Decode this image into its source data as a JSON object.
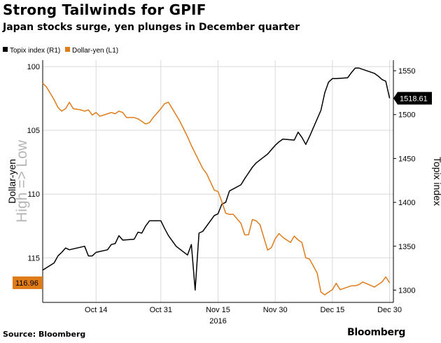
{
  "title": "Strong Tailwinds for GPIF",
  "subtitle": "Japan stocks surge, yen plunges in December quarter",
  "source": "Source: Bloomberg",
  "brand": "Bloomberg",
  "chart_data": {
    "type": "line",
    "legend": {
      "placement": "top-left",
      "entries": [
        "Topix index (R1)",
        "Dollar-yen (L1)"
      ]
    },
    "left_axis": {
      "label": "Dollar-yen",
      "side_label": "High => Low",
      "inverted": true,
      "ylim": [
        99.5,
        118.5
      ],
      "ticks": [
        100,
        105,
        110,
        115
      ],
      "tick_labels": [
        "100",
        "105",
        "110",
        "115"
      ],
      "last_value_label": "116.96"
    },
    "right_axis": {
      "label": "Topix index",
      "ylim": [
        1286,
        1562
      ],
      "ticks": [
        1300,
        1350,
        1400,
        1450,
        1500,
        1550
      ],
      "tick_labels": [
        "1300",
        "1350",
        "1400",
        "1450",
        "1500",
        "1550"
      ],
      "last_value_label": "1518.61"
    },
    "x_axis": {
      "start": "2016-09-30",
      "end": "2016-12-31",
      "ticks": [
        "2016-10-14",
        "2016-10-31",
        "2016-11-15",
        "2016-11-30",
        "2016-12-15",
        "2016-12-30"
      ],
      "tick_labels": [
        "Oct 14",
        "Oct 31",
        "Nov 15",
        "Nov 30",
        "Dec 15",
        "Dec 30"
      ],
      "year_label": "2016"
    },
    "colors": {
      "topix": "#000000",
      "usdjpy": "#e07b1a",
      "grid": "#d9d9d9"
    },
    "series": [
      {
        "name": "Topix index (R1)",
        "axis": "right",
        "color": "#000000",
        "points": [
          [
            "2016-09-30",
            1322.8
          ],
          [
            "2016-10-03",
            1331
          ],
          [
            "2016-10-04",
            1339
          ],
          [
            "2016-10-05",
            1343
          ],
          [
            "2016-10-06",
            1348
          ],
          [
            "2016-10-07",
            1346
          ],
          [
            "2016-10-11",
            1350
          ],
          [
            "2016-10-12",
            1339
          ],
          [
            "2016-10-13",
            1339
          ],
          [
            "2016-10-14",
            1343
          ],
          [
            "2016-10-17",
            1346
          ],
          [
            "2016-10-18",
            1352
          ],
          [
            "2016-10-19",
            1353
          ],
          [
            "2016-10-20",
            1362
          ],
          [
            "2016-10-21",
            1357
          ],
          [
            "2016-10-24",
            1358
          ],
          [
            "2016-10-25",
            1366
          ],
          [
            "2016-10-26",
            1365
          ],
          [
            "2016-10-27",
            1373
          ],
          [
            "2016-10-28",
            1379
          ],
          [
            "2016-10-31",
            1379
          ],
          [
            "2016-11-01",
            1370
          ],
          [
            "2016-11-02",
            1362
          ],
          [
            "2016-11-04",
            1350
          ],
          [
            "2016-11-07",
            1340
          ],
          [
            "2016-11-08",
            1352
          ],
          [
            "2016-11-09",
            1300
          ],
          [
            "2016-11-10",
            1365
          ],
          [
            "2016-11-11",
            1367
          ],
          [
            "2016-11-14",
            1385
          ],
          [
            "2016-11-15",
            1387
          ],
          [
            "2016-11-16",
            1398
          ],
          [
            "2016-11-17",
            1400
          ],
          [
            "2016-11-18",
            1413
          ],
          [
            "2016-11-21",
            1420
          ],
          [
            "2016-11-22",
            1427
          ],
          [
            "2016-11-24",
            1440
          ],
          [
            "2016-11-25",
            1445
          ],
          [
            "2016-11-28",
            1455
          ],
          [
            "2016-11-29",
            1460
          ],
          [
            "2016-11-30",
            1465
          ],
          [
            "2016-12-01",
            1469
          ],
          [
            "2016-12-02",
            1472
          ],
          [
            "2016-12-05",
            1471
          ],
          [
            "2016-12-06",
            1480
          ],
          [
            "2016-12-07",
            1474
          ],
          [
            "2016-12-08",
            1466
          ],
          [
            "2016-12-09",
            1475
          ],
          [
            "2016-12-12",
            1505
          ],
          [
            "2016-12-13",
            1525
          ],
          [
            "2016-12-14",
            1537
          ],
          [
            "2016-12-15",
            1541
          ],
          [
            "2016-12-16",
            1541
          ],
          [
            "2016-12-19",
            1542
          ],
          [
            "2016-12-20",
            1548
          ],
          [
            "2016-12-21",
            1553
          ],
          [
            "2016-12-22",
            1553
          ],
          [
            "2016-12-26",
            1547
          ],
          [
            "2016-12-27",
            1544
          ],
          [
            "2016-12-28",
            1540
          ],
          [
            "2016-12-29",
            1538
          ],
          [
            "2016-12-30",
            1518.61
          ]
        ]
      },
      {
        "name": "Dollar-yen (L1)",
        "axis": "left",
        "color": "#e07b1a",
        "points": [
          [
            "2016-09-30",
            101.3
          ],
          [
            "2016-10-01",
            101.6
          ],
          [
            "2016-10-03",
            102.6
          ],
          [
            "2016-10-04",
            103.2
          ],
          [
            "2016-10-05",
            103.5
          ],
          [
            "2016-10-06",
            103.3
          ],
          [
            "2016-10-07",
            102.8
          ],
          [
            "2016-10-08",
            103.3
          ],
          [
            "2016-10-10",
            103.4
          ],
          [
            "2016-10-11",
            103.5
          ],
          [
            "2016-10-12",
            103.4
          ],
          [
            "2016-10-13",
            103.8
          ],
          [
            "2016-10-14",
            103.6
          ],
          [
            "2016-10-15",
            103.9
          ],
          [
            "2016-10-17",
            103.7
          ],
          [
            "2016-10-18",
            103.6
          ],
          [
            "2016-10-19",
            103.7
          ],
          [
            "2016-10-20",
            103.5
          ],
          [
            "2016-10-21",
            103.6
          ],
          [
            "2016-10-22",
            104.0
          ],
          [
            "2016-10-24",
            104.0
          ],
          [
            "2016-10-25",
            104.1
          ],
          [
            "2016-10-26",
            104.3
          ],
          [
            "2016-10-27",
            104.5
          ],
          [
            "2016-10-28",
            104.4
          ],
          [
            "2016-10-29",
            104.0
          ],
          [
            "2016-10-31",
            103.3
          ],
          [
            "2016-11-01",
            102.9
          ],
          [
            "2016-11-02",
            102.8
          ],
          [
            "2016-11-03",
            103.3
          ],
          [
            "2016-11-04",
            103.8
          ],
          [
            "2016-11-05",
            104.3
          ],
          [
            "2016-11-07",
            105.5
          ],
          [
            "2016-11-08",
            106.2
          ],
          [
            "2016-11-09",
            106.8
          ],
          [
            "2016-11-10",
            107.4
          ],
          [
            "2016-11-11",
            108.0
          ],
          [
            "2016-11-12",
            108.4
          ],
          [
            "2016-11-14",
            109.7
          ],
          [
            "2016-11-15",
            109.8
          ],
          [
            "2016-11-16",
            110.6
          ],
          [
            "2016-11-17",
            111.5
          ],
          [
            "2016-11-18",
            111.6
          ],
          [
            "2016-11-19",
            111.6
          ],
          [
            "2016-11-21",
            112.3
          ],
          [
            "2016-11-22",
            113.2
          ],
          [
            "2016-11-23",
            113.2
          ],
          [
            "2016-11-24",
            112.0
          ],
          [
            "2016-11-25",
            112.1
          ],
          [
            "2016-11-26",
            112.4
          ],
          [
            "2016-11-28",
            114.4
          ],
          [
            "2016-11-29",
            114.2
          ],
          [
            "2016-11-30",
            113.5
          ],
          [
            "2016-12-01",
            113.1
          ],
          [
            "2016-12-02",
            113.4
          ],
          [
            "2016-12-04",
            113.8
          ],
          [
            "2016-12-05",
            113.3
          ],
          [
            "2016-12-06",
            113.6
          ],
          [
            "2016-12-07",
            113.8
          ],
          [
            "2016-12-08",
            115.0
          ],
          [
            "2016-12-09",
            115.1
          ],
          [
            "2016-12-11",
            116.2
          ],
          [
            "2016-12-12",
            117.7
          ],
          [
            "2016-12-13",
            117.9
          ],
          [
            "2016-12-14",
            117.7
          ],
          [
            "2016-12-15",
            117.5
          ],
          [
            "2016-12-16",
            117.0
          ],
          [
            "2016-12-17",
            117.5
          ],
          [
            "2016-12-19",
            117.3
          ],
          [
            "2016-12-20",
            117.2
          ],
          [
            "2016-12-21",
            117.2
          ],
          [
            "2016-12-22",
            117.1
          ],
          [
            "2016-12-23",
            116.9
          ],
          [
            "2016-12-26",
            117.3
          ],
          [
            "2016-12-27",
            117.1
          ],
          [
            "2016-12-28",
            116.9
          ],
          [
            "2016-12-29",
            116.5
          ],
          [
            "2016-12-30",
            116.96
          ]
        ]
      }
    ]
  }
}
